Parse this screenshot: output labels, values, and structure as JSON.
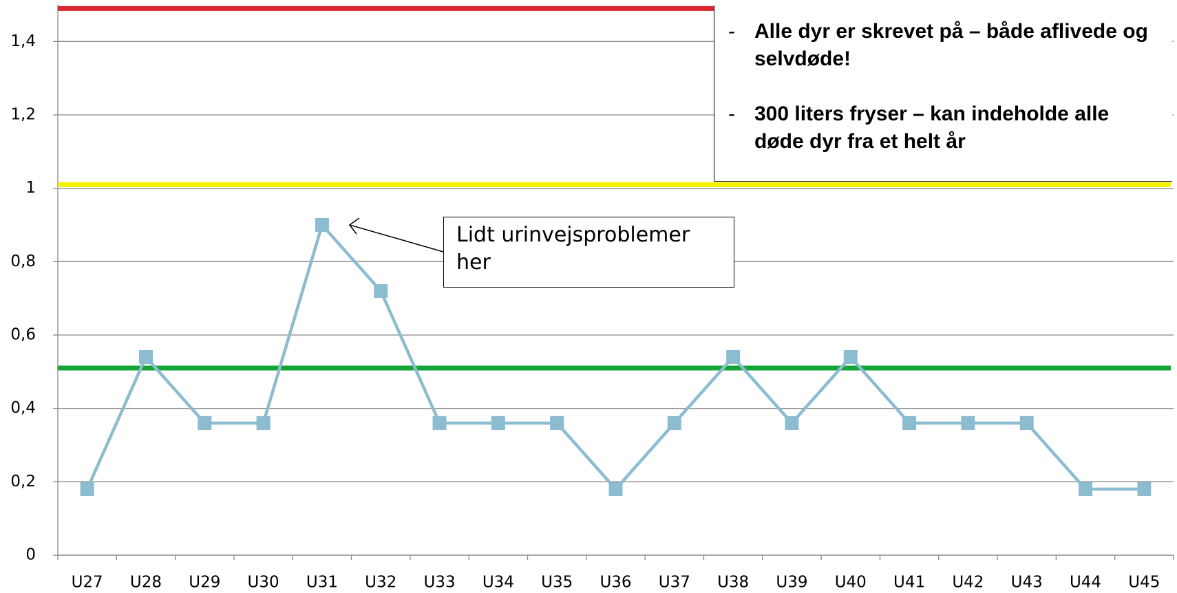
{
  "chart_data": {
    "type": "line",
    "categories": [
      "U27",
      "U28",
      "U29",
      "U30",
      "U31",
      "U32",
      "U33",
      "U34",
      "U35",
      "U36",
      "U37",
      "U38",
      "U39",
      "U40",
      "U41",
      "U42",
      "U43",
      "U44",
      "U45"
    ],
    "series": [
      {
        "color": "#8cbcd0",
        "values": [
          0.18,
          0.54,
          0.36,
          0.36,
          0.9,
          0.72,
          0.36,
          0.36,
          0.36,
          0.18,
          0.36,
          0.54,
          0.36,
          0.54,
          0.36,
          0.36,
          0.36,
          0.18,
          0.18
        ]
      }
    ],
    "ylim": [
      0,
      1.5
    ],
    "yticks": [
      0,
      {
        "value": 0.2,
        "label": "0,2"
      },
      {
        "value": 0.4,
        "label": "0,4"
      },
      {
        "value": 0.6,
        "label": "0,6"
      },
      {
        "value": 0.8,
        "label": "0,8"
      },
      1,
      {
        "value": 1.2,
        "label": "1,2"
      },
      {
        "value": 1.4,
        "label": "1,4"
      }
    ],
    "grid": true,
    "reference_lines": [
      {
        "value": 1.49,
        "color": "#d9262e"
      },
      {
        "value": 1.01,
        "color": "#f5f000"
      },
      {
        "value": 0.51,
        "color": "#12a536"
      }
    ],
    "annotations": [
      {
        "text": "Lidt urinvejsproblemer her",
        "point_index": 4
      }
    ],
    "note_box": {
      "bullet": "-",
      "items": [
        "Alle dyr er skrevet på – både aflivede og selvdøde!",
        "300 liters fryser – kan indeholde alle døde dyr fra et helt år"
      ]
    }
  }
}
